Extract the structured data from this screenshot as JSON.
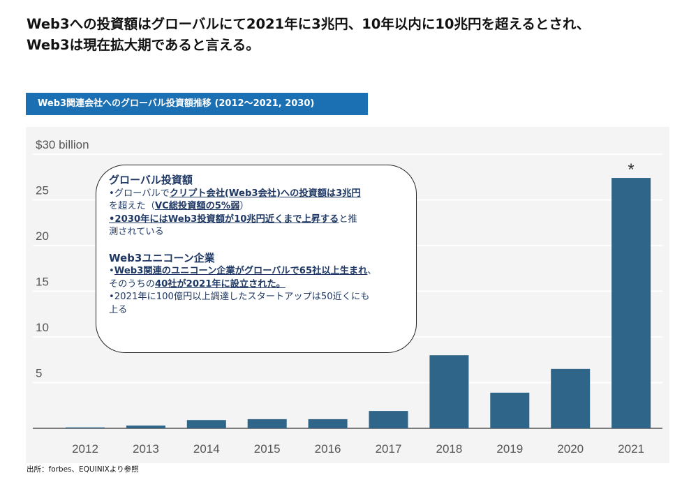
{
  "headline": {
    "line1": "Web3への投資額はグローバルにて2021年に3兆円、10年以内に10兆円を超えるとされ、",
    "line2": "Web3は現在拡大期であると言える。"
  },
  "chart_title": "Web3関連会社へのグローバル投資額推移 (2012〜2021, 2030)",
  "info_box": {
    "section1": {
      "title": "グローバル投資額",
      "b1_pre": "•グローバルで",
      "b1_u": "クリプト会社(Web3会社)への投資額は3兆円",
      "b1_mid": "を超えた（",
      "b1_u2": "VC総投資額の5%弱",
      "b1_post": "）",
      "b2_u": "•2030年にはWeb3投資額が10兆円近くまで上昇する",
      "b2_post1": "と推",
      "b2_post2": "測されている"
    },
    "section2": {
      "title": "Web3ユニコーン企業",
      "b1_pre": "•",
      "b1_u": "Web3関連のユニコーン企業がグローバルで65社以上生まれ",
      "b1_post": "、",
      "b1_line2_pre": "そのうちの",
      "b1_line2_u": "40社が2021年に設立された。",
      "b2_line1": "•2021年に100億円以上調達したスタートアップは50近くにも",
      "b2_line2": "上る"
    }
  },
  "source": "出所：forbes、EQUINIXより参照",
  "chart_data": {
    "type": "bar",
    "categories": [
      "2012",
      "2013",
      "2014",
      "2015",
      "2016",
      "2017",
      "2018",
      "2019",
      "2020",
      "2021"
    ],
    "values": [
      0.1,
      0.3,
      0.9,
      1.0,
      1.0,
      1.9,
      8.0,
      3.9,
      6.5,
      27.4
    ],
    "ylim": [
      0,
      30
    ],
    "y_ticks": [
      "5",
      "10",
      "15",
      "20",
      "25",
      "$30 billion"
    ],
    "y_tick_values": [
      5,
      10,
      15,
      20,
      25,
      30
    ],
    "annotation": "*",
    "bar_color": "#2f6589",
    "grid": true
  }
}
